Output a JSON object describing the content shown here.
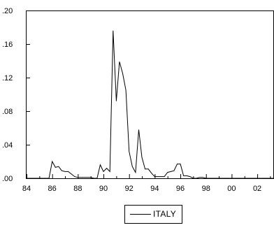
{
  "chart_data": {
    "type": "line",
    "title": "",
    "xlabel": "",
    "ylabel": "",
    "x_ticks": [
      "84",
      "86",
      "88",
      "90",
      "92",
      "94",
      "96",
      "98",
      "00",
      "02"
    ],
    "y_ticks": [
      ".00",
      ".04",
      ".08",
      ".12",
      ".16",
      ".20"
    ],
    "ylim": [
      0,
      0.2
    ],
    "xlim": [
      1984.0,
      2003.25
    ],
    "grid": false,
    "legend_position": "bottom-center",
    "series": [
      {
        "name": "ITALY",
        "color": "#000000",
        "points": [
          [
            1984.0,
            0.0
          ],
          [
            1985.75,
            0.0
          ],
          [
            1986.0,
            0.02
          ],
          [
            1986.25,
            0.013
          ],
          [
            1986.5,
            0.014
          ],
          [
            1986.75,
            0.009
          ],
          [
            1987.0,
            0.008
          ],
          [
            1987.25,
            0.008
          ],
          [
            1987.5,
            0.005
          ],
          [
            1987.75,
            0.002
          ],
          [
            1988.0,
            0.001
          ],
          [
            1988.5,
            0.001
          ],
          [
            1988.75,
            0.001
          ],
          [
            1989.0,
            0.001
          ],
          [
            1989.25,
            0.0
          ],
          [
            1989.5,
            0.0
          ],
          [
            1989.75,
            0.016
          ],
          [
            1990.0,
            0.008
          ],
          [
            1990.25,
            0.012
          ],
          [
            1990.5,
            0.008
          ],
          [
            1990.75,
            0.176
          ],
          [
            1991.0,
            0.092
          ],
          [
            1991.25,
            0.139
          ],
          [
            1991.5,
            0.125
          ],
          [
            1991.75,
            0.105
          ],
          [
            1992.0,
            0.032
          ],
          [
            1992.25,
            0.014
          ],
          [
            1992.5,
            0.007
          ],
          [
            1992.75,
            0.058
          ],
          [
            1993.0,
            0.025
          ],
          [
            1993.25,
            0.011
          ],
          [
            1993.5,
            0.011
          ],
          [
            1993.75,
            0.006
          ],
          [
            1994.0,
            0.002
          ],
          [
            1994.25,
            0.002
          ],
          [
            1994.5,
            0.002
          ],
          [
            1994.75,
            0.002
          ],
          [
            1995.0,
            0.007
          ],
          [
            1995.25,
            0.008
          ],
          [
            1995.5,
            0.009
          ],
          [
            1995.75,
            0.017
          ],
          [
            1996.0,
            0.017
          ],
          [
            1996.25,
            0.003
          ],
          [
            1996.5,
            0.003
          ],
          [
            1996.75,
            0.002
          ],
          [
            1997.0,
            0.0
          ],
          [
            1997.25,
            0.0
          ],
          [
            1997.5,
            0.001
          ],
          [
            1997.75,
            0.001
          ],
          [
            1998.0,
            0.0
          ],
          [
            2003.25,
            0.0
          ]
        ]
      }
    ]
  }
}
